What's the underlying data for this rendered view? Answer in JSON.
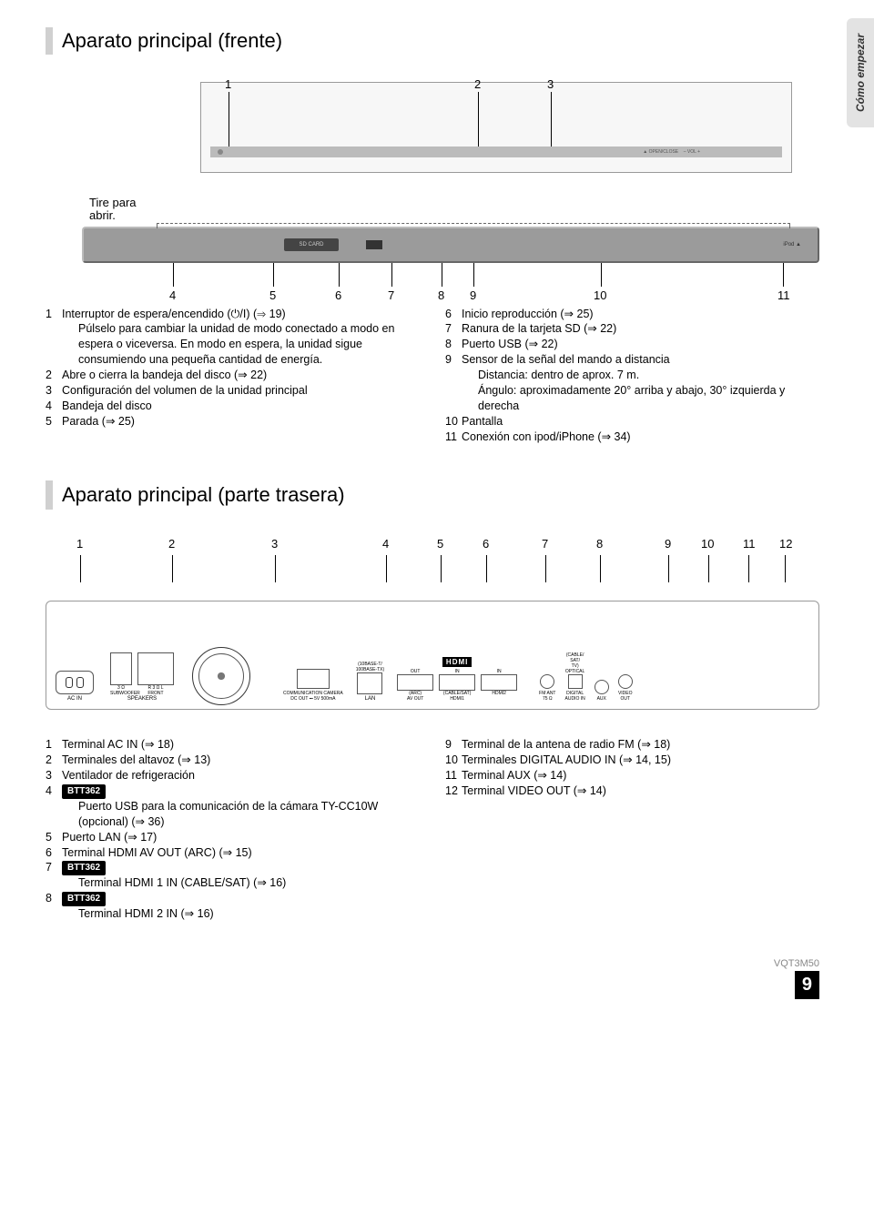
{
  "sideTab": "Cómo empezar",
  "front": {
    "title": "Aparato principal (frente)",
    "tire": "Tire para\nabrir.",
    "topNums": [
      "1",
      "2",
      "3"
    ],
    "bottomNums": [
      "4",
      "5",
      "6",
      "7",
      "8",
      "9",
      "10",
      "11"
    ],
    "left": [
      {
        "n": "1",
        "t": "Interruptor de espera/encendido (⏻/I) (⇒ 19)"
      },
      {
        "n": "",
        "t": "Púlselo para cambiar la unidad de modo conectado a modo en espera o viceversa. En modo en espera, la unidad sigue consumiendo una pequeña cantidad de energía."
      },
      {
        "n": "2",
        "t": "Abre o cierra la bandeja del disco (⇒ 22)"
      },
      {
        "n": "3",
        "t": "Configuración del volumen de la unidad principal"
      },
      {
        "n": "4",
        "t": "Bandeja del disco"
      },
      {
        "n": "5",
        "t": "Parada (⇒ 25)"
      }
    ],
    "right": [
      {
        "n": "6",
        "t": "Inicio reproducción (⇒ 25)"
      },
      {
        "n": "7",
        "t": "Ranura de la tarjeta SD (⇒ 22)"
      },
      {
        "n": "8",
        "t": "Puerto USB (⇒ 22)"
      },
      {
        "n": "9",
        "t": "Sensor de la señal del mando a distancia"
      },
      {
        "n": "",
        "t": "Distancia: dentro de aprox. 7 m."
      },
      {
        "n": "",
        "t": "Ángulo: aproximadamente 20° arriba y abajo, 30° izquierda y derecha"
      },
      {
        "n": "10",
        "t": "Pantalla"
      },
      {
        "n": "11",
        "t": "Conexión con ipod/iPhone (⇒ 34)"
      }
    ]
  },
  "rear": {
    "title": "Aparato principal (parte trasera)",
    "nums": [
      "1",
      "2",
      "3",
      "4",
      "5",
      "6",
      "7",
      "8",
      "9",
      "10",
      "11",
      "12"
    ],
    "portLabels": {
      "acin": "AC IN",
      "speakers": "SPEAKERS",
      "sub": "3 Ω\nSUBWOOFER",
      "front": "R 3 Ω L\nFRONT",
      "cam": "COMMUNICATION CAMERA\nDC OUT ⎓ 5V 500mA",
      "lan": "LAN",
      "lanrate": "(10BASE-T/\n100BASE-TX)",
      "avout": "(ARC)\nAV OUT",
      "hdmi1": "(CABLE/SAT)\nHDMI1",
      "hdmi2": "HDMI2",
      "fm": "FM ANT\n75 Ω",
      "cable": "(CABLE/\nSAT/\nTV)",
      "optical": "OPTICAL",
      "digaudio": "DIGITAL\nAUDIO IN",
      "aux": "AUX",
      "video": "VIDEO\nOUT",
      "out": "OUT",
      "in": "IN",
      "hdmi": "HDMI"
    },
    "left": [
      {
        "n": "1",
        "t": "Terminal AC IN (⇒ 18)"
      },
      {
        "n": "2",
        "t": "Terminales del altavoz (⇒ 13)"
      },
      {
        "n": "3",
        "t": "Ventilador de refrigeración"
      },
      {
        "n": "4",
        "badge": "BTT362"
      },
      {
        "n": "",
        "t": "Puerto USB para la comunicación de la cámara TY-CC10W (opcional) (⇒ 36)"
      },
      {
        "n": "5",
        "t": "Puerto LAN (⇒ 17)"
      },
      {
        "n": "6",
        "t": "Terminal HDMI AV OUT (ARC) (⇒ 15)"
      },
      {
        "n": "7",
        "badge": "BTT362"
      },
      {
        "n": "",
        "t": "Terminal HDMI 1 IN (CABLE/SAT) (⇒ 16)"
      },
      {
        "n": "8",
        "badge": "BTT362"
      },
      {
        "n": "",
        "t": "Terminal HDMI 2 IN (⇒ 16)"
      }
    ],
    "right": [
      {
        "n": "9",
        "t": "Terminal de la antena de radio FM (⇒ 18)"
      },
      {
        "n": "10",
        "t": "Terminales DIGITAL AUDIO IN (⇒ 14, 15)"
      },
      {
        "n": "11",
        "t": "Terminal AUX (⇒ 14)"
      },
      {
        "n": "12",
        "t": "Terminal VIDEO OUT (⇒ 14)"
      }
    ]
  },
  "footer": {
    "code": "VQT3M50",
    "page": "9"
  }
}
